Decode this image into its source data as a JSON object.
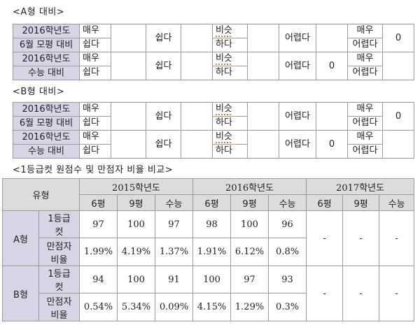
{
  "captions": {
    "a_compare": "<A형 대비>",
    "b_compare": "<B형 대비>",
    "grade_compare": "<1등급컷 원점수 및 만점자 비율 비교>"
  },
  "a_table": {
    "rows": [
      {
        "label_line1": "2016학년도",
        "label_line2": "6월 모평 대비",
        "c1a": "매우",
        "c1b": "쉽다",
        "c2": "",
        "c3": "쉽다",
        "c4": "",
        "c5a": "비슷",
        "c5b": "하다",
        "c6": "",
        "c7": "어렵다",
        "c8": "",
        "c9a": "매우",
        "c9b": "어렵다",
        "c10": "0"
      },
      {
        "label_line1": "2016학년도",
        "label_line2": "수능 대비",
        "c1a": "매우",
        "c1b": "쉽다",
        "c2": "",
        "c3": "쉽다",
        "c4": "",
        "c5a": "비슷",
        "c5b": "하다",
        "c6": "",
        "c7": "어렵다",
        "c8": "0",
        "c9a": "매우",
        "c9b": "어렵다",
        "c10": ""
      }
    ]
  },
  "b_table": {
    "rows": [
      {
        "label_line1": "2016학년도",
        "label_line2": "6월 모평 대비",
        "c1a": "매우",
        "c1b": "쉽다",
        "c2": "",
        "c3": "쉽다",
        "c4": "",
        "c5a": "비슷",
        "c5b": "하다",
        "c6": "",
        "c7": "어렵다",
        "c8": "",
        "c9a": "매우",
        "c9b": "어렵다",
        "c10": "0"
      },
      {
        "label_line1": "2016학년도",
        "label_line2": "수능 대비",
        "c1a": "매우",
        "c1b": "쉽다",
        "c2": "",
        "c3": "쉽다",
        "c4": "",
        "c5a": "비슷",
        "c5b": "하다",
        "c6": "",
        "c7": "어렵다",
        "c8": "0",
        "c9a": "매우",
        "c9b": "어렵다",
        "c10": ""
      }
    ]
  },
  "grade_table": {
    "type_header": "유형",
    "years": [
      "2015학년도",
      "2016학년도",
      "2017학년도"
    ],
    "exams": [
      "6평",
      "9평",
      "수능"
    ],
    "rows": [
      {
        "type": "A형",
        "cut_label_1": "1등급",
        "cut_label_2": "컷",
        "cut_values": [
          "97",
          "100",
          "97",
          "98",
          "100",
          "96"
        ],
        "perfect_label_1": "만점자",
        "perfect_label_2": "비율",
        "perfect_values": [
          "1.99%",
          "4.19%",
          "1.37%",
          "1.91%",
          "6.12%",
          "0.8%"
        ],
        "future": [
          "-",
          "-",
          "-"
        ]
      },
      {
        "type": "B형",
        "cut_label_1": "1등급",
        "cut_label_2": "컷",
        "cut_values": [
          "94",
          "100",
          "91",
          "100",
          "97",
          "93"
        ],
        "perfect_label_1": "만점자",
        "perfect_label_2": "비율",
        "perfect_values": [
          "0.54%",
          "5.34%",
          "0.09%",
          "4.15%",
          "1.29%",
          "0.3%"
        ],
        "future": [
          "-",
          "-",
          "-"
        ]
      }
    ]
  }
}
